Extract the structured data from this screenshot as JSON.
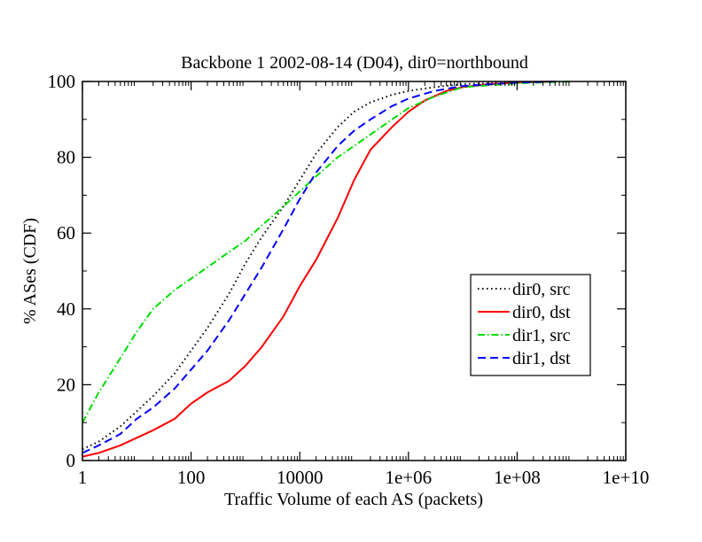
{
  "chart_data": {
    "type": "line",
    "title": "Backbone 1 2002-08-14 (D04), dir0=northbound",
    "xlabel": "Traffic Volume of each AS (packets)",
    "ylabel": "% ASes (CDF)",
    "xscale": "log",
    "xlim": [
      1,
      10000000000
    ],
    "ylim": [
      0,
      100
    ],
    "x_ticks": [
      1,
      100,
      10000,
      1000000,
      100000000,
      10000000000
    ],
    "x_tick_labels": [
      "1",
      "100",
      "10000",
      "1e+06",
      "1e+08",
      "1e+10"
    ],
    "y_ticks": [
      0,
      20,
      40,
      60,
      80,
      100
    ],
    "y_tick_labels": [
      "0",
      "20",
      "40",
      "60",
      "80",
      "100"
    ],
    "grid": false,
    "legend_position": "right",
    "series": [
      {
        "name": "dir0, src",
        "color": "#000000",
        "style": "dotted",
        "x": [
          1,
          2,
          5,
          10,
          20,
          50,
          100,
          200,
          500,
          1000,
          2000,
          5000,
          10000,
          20000,
          50000,
          100000,
          200000,
          500000,
          1000000,
          3000000,
          10000000,
          100000000,
          500000000
        ],
        "y": [
          3,
          5,
          9,
          13,
          17,
          23,
          29,
          35,
          44,
          52,
          59,
          67,
          74,
          81,
          88,
          92,
          94.5,
          96.5,
          97.5,
          98.5,
          99.3,
          99.8,
          100
        ]
      },
      {
        "name": "dir0, dst",
        "color": "#ff0000",
        "style": "solid",
        "x": [
          1,
          2,
          5,
          10,
          20,
          50,
          100,
          200,
          500,
          1000,
          2000,
          5000,
          10000,
          20000,
          50000,
          100000,
          200000,
          500000,
          1000000,
          2000000,
          5000000,
          10000000,
          30000000,
          100000000,
          500000000
        ],
        "y": [
          1,
          2,
          4,
          6,
          8,
          11,
          15,
          18,
          21,
          25,
          30,
          38,
          46,
          53,
          64,
          74,
          82,
          88,
          92,
          95,
          97.5,
          98.5,
          99.3,
          99.7,
          100
        ]
      },
      {
        "name": "dir1, src",
        "color": "#00dd00",
        "style": "dashdot",
        "x": [
          1,
          2,
          5,
          10,
          20,
          50,
          100,
          200,
          500,
          1000,
          2000,
          5000,
          10000,
          20000,
          50000,
          100000,
          200000,
          500000,
          1000000,
          3000000,
          10000000,
          100000000,
          1000000000
        ],
        "y": [
          10,
          18,
          27,
          34,
          40,
          45,
          48,
          51,
          55,
          58,
          62,
          67,
          71,
          75,
          80,
          83,
          86,
          90,
          93,
          96,
          98.5,
          99.5,
          100
        ]
      },
      {
        "name": "dir1, dst",
        "color": "#0000ff",
        "style": "dashed",
        "x": [
          1,
          2,
          5,
          10,
          20,
          50,
          100,
          200,
          500,
          1000,
          2000,
          5000,
          10000,
          20000,
          50000,
          100000,
          200000,
          500000,
          1000000,
          3000000,
          10000000,
          100000000,
          500000000
        ],
        "y": [
          2,
          4,
          7,
          11,
          14,
          19,
          24,
          29,
          37,
          44,
          51,
          61,
          69,
          76,
          83,
          87,
          90,
          93.5,
          95.5,
          97.5,
          98.8,
          99.7,
          100
        ]
      }
    ]
  }
}
